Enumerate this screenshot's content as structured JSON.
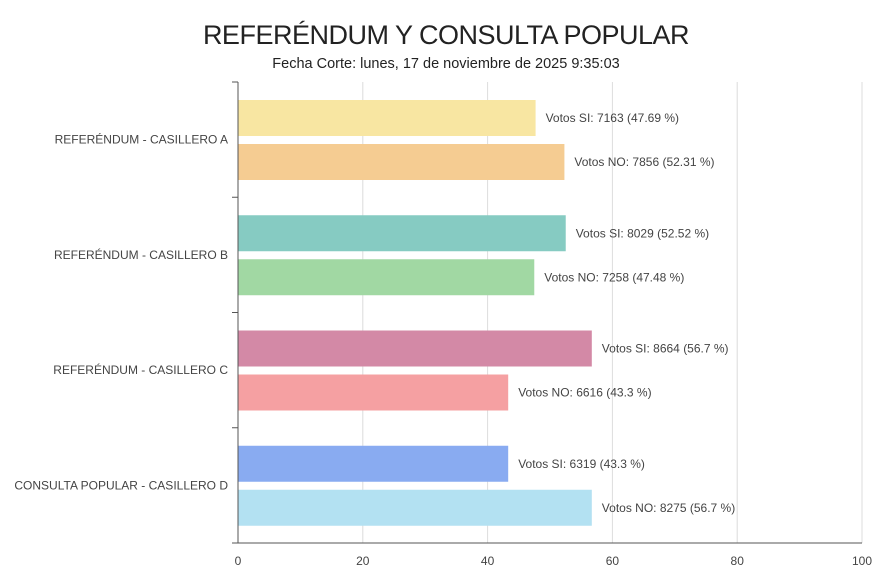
{
  "chart_data": {
    "type": "bar",
    "orientation": "horizontal",
    "title": "REFERÉNDUM Y CONSULTA POPULAR",
    "subtitle": "Fecha Corte: lunes, 17 de noviembre de 2025 9:35:03",
    "categories": [
      "REFERÉNDUM - CASILLERO A",
      "REFERÉNDUM - CASILLERO B",
      "REFERÉNDUM - CASILLERO C",
      "CONSULTA POPULAR - CASILLERO D"
    ],
    "xlim": [
      0,
      100
    ],
    "xticks": [
      "0",
      "20",
      "40",
      "60",
      "80",
      "100"
    ],
    "grid": true,
    "bars": [
      {
        "category": 0,
        "value": 47.69,
        "color": "#f8e6a2",
        "label": "Votos SI: 7163 (47.69 %)"
      },
      {
        "category": 0,
        "value": 52.31,
        "color": "#f5cc92",
        "label": "Votos NO: 7856 (52.31 %)"
      },
      {
        "category": 1,
        "value": 52.52,
        "color": "#86cbc2",
        "label": "Votos SI: 8029 (52.52 %)"
      },
      {
        "category": 1,
        "value": 47.48,
        "color": "#a1d8a3",
        "label": "Votos NO: 7258 (47.48 %)"
      },
      {
        "category": 2,
        "value": 56.7,
        "color": "#d389a6",
        "label": "Votos SI: 8664 (56.7 %)"
      },
      {
        "category": 2,
        "value": 43.3,
        "color": "#f5a0a2",
        "label": "Votos NO: 6616 (43.3 %)"
      },
      {
        "category": 3,
        "value": 43.3,
        "color": "#89abf1",
        "label": "Votos SI: 6319 (43.3 %)"
      },
      {
        "category": 3,
        "value": 56.7,
        "color": "#b3e1f2",
        "label": "Votos NO: 8275 (56.7 %)"
      }
    ]
  }
}
